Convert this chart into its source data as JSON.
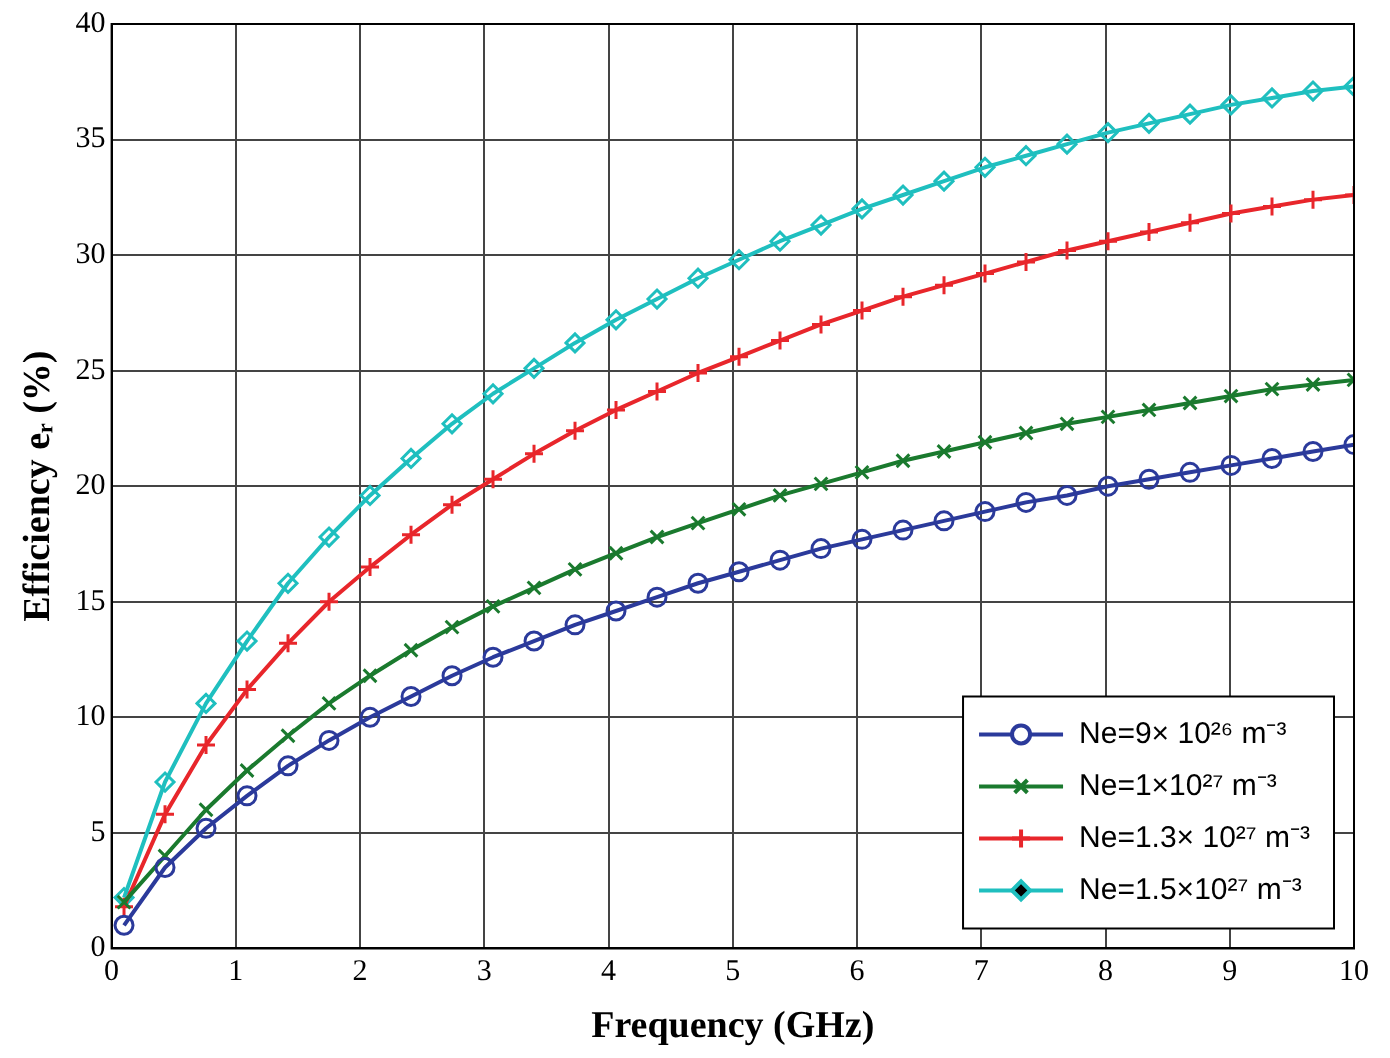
{
  "chart_data": {
    "type": "line",
    "xlabel": "Frequency (GHz)",
    "ylabel": "Efficiency eᵣ (%)",
    "x": [
      0.1,
      0.43,
      0.76,
      1.09,
      1.42,
      1.75,
      2.08,
      2.41,
      2.74,
      3.07,
      3.4,
      3.73,
      4.06,
      4.39,
      4.72,
      5.05,
      5.38,
      5.71,
      6.04,
      6.37,
      6.7,
      7.03,
      7.36,
      7.69,
      8.02,
      8.35,
      8.68,
      9.01,
      9.34,
      9.67,
      10
    ],
    "series": [
      {
        "name": "Ne=9× 10²⁶ m⁻³",
        "color": "#2b3a9b",
        "marker": "circle",
        "values": [
          1.0,
          3.5,
          5.2,
          6.6,
          7.9,
          9.0,
          10.0,
          10.9,
          11.8,
          12.6,
          13.3,
          14.0,
          14.6,
          15.2,
          15.8,
          16.3,
          16.8,
          17.3,
          17.7,
          18.1,
          18.5,
          18.9,
          19.3,
          19.6,
          20.0,
          20.3,
          20.6,
          20.9,
          21.2,
          21.5,
          21.8
        ]
      },
      {
        "name": "Ne=1×10²⁷ m⁻³",
        "color": "#1a7a2e",
        "marker": "cross",
        "values": [
          2.0,
          4.0,
          6.0,
          7.7,
          9.2,
          10.6,
          11.8,
          12.9,
          13.9,
          14.8,
          15.6,
          16.4,
          17.1,
          17.8,
          18.4,
          19.0,
          19.6,
          20.1,
          20.6,
          21.1,
          21.5,
          21.9,
          22.3,
          22.7,
          23.0,
          23.3,
          23.6,
          23.9,
          24.2,
          24.4,
          24.6
        ]
      },
      {
        "name": "Ne=1.3× 10²⁷ m⁻³",
        "color": "#e8262b",
        "marker": "plus",
        "values": [
          1.8,
          5.8,
          8.8,
          11.2,
          13.2,
          15.0,
          16.5,
          17.9,
          19.2,
          20.3,
          21.4,
          22.4,
          23.3,
          24.1,
          24.9,
          25.6,
          26.3,
          27.0,
          27.6,
          28.2,
          28.7,
          29.2,
          29.7,
          30.2,
          30.6,
          31.0,
          31.4,
          31.8,
          32.1,
          32.4,
          32.6
        ]
      },
      {
        "name": "Ne=1.5×10²⁷ m⁻³",
        "color": "#1fbfbf",
        "marker": "diamond",
        "values": [
          2.2,
          7.2,
          10.6,
          13.3,
          15.8,
          17.8,
          19.6,
          21.2,
          22.7,
          24.0,
          25.1,
          26.2,
          27.2,
          28.1,
          29.0,
          29.8,
          30.6,
          31.3,
          32.0,
          32.6,
          33.2,
          33.8,
          34.3,
          34.8,
          35.3,
          35.7,
          36.1,
          36.5,
          36.8,
          37.1,
          37.3
        ]
      }
    ],
    "xlim": [
      0,
      10
    ],
    "xticks": [
      0,
      1,
      2,
      3,
      4,
      5,
      6,
      7,
      8,
      9,
      10
    ],
    "ylim": [
      0,
      40
    ],
    "yticks": [
      0,
      5,
      10,
      15,
      20,
      25,
      30,
      35,
      40
    ],
    "grid": true,
    "legend": "bottom right",
    "line_style": "solid"
  }
}
